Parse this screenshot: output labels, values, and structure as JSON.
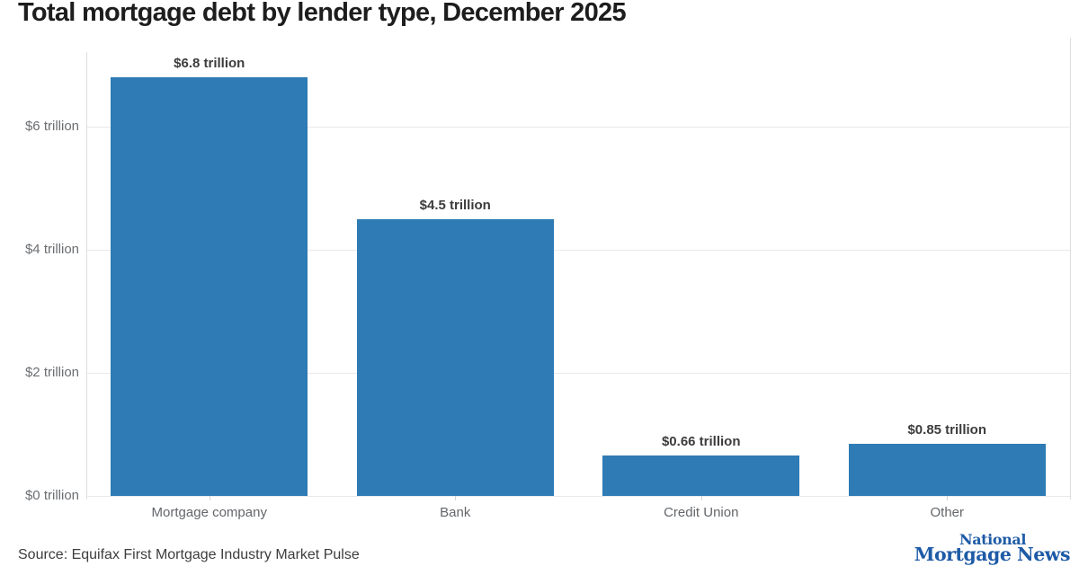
{
  "title": "Total mortgage debt by lender type, December 2025",
  "footer": {
    "source": "Source: Equifax First Mortgage Industry Market Pulse",
    "logo": {
      "line1": "National",
      "line2": "Mortgage News"
    }
  },
  "colors": {
    "bar": "#2e7bb5",
    "gridline": "#e9e9e9",
    "axis_line": "#dedede",
    "tick_mark": "#d2d2d2",
    "title_text": "#1d1d1d",
    "ytick_text": "#6b6e72",
    "category_text": "#63666a",
    "value_label_text": "#3c3c3c",
    "source_text": "#3d3d3d",
    "logo_blue": "#1e5ba6",
    "background": "#ffffff"
  },
  "chart_data": {
    "type": "bar",
    "title": "Total mortgage debt by lender type, December 2025",
    "categories": [
      "Mortgage company",
      "Bank",
      "Credit Union",
      "Other"
    ],
    "values": [
      6.8,
      4.5,
      0.66,
      0.85
    ],
    "value_labels": [
      "$6.8 trillion",
      "$4.5 trillion",
      "$0.66 trillion",
      "$0.85 trillion"
    ],
    "unit": "trillion USD",
    "y_ticks": [
      0,
      2,
      4,
      6
    ],
    "y_tick_labels": [
      "$0 trillion",
      "$2 trillion",
      "$4 trillion",
      "$6 trillion"
    ],
    "ylim": [
      0,
      7.2
    ],
    "xlabel": "",
    "ylabel": "",
    "grid": true,
    "legend": "none"
  }
}
